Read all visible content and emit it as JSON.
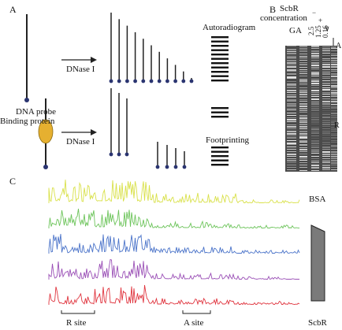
{
  "panels": {
    "a": "A",
    "b": "B",
    "c": "C"
  },
  "panel_a": {
    "step_label_top": "DNase I",
    "step_label_bottom": "DNase I",
    "probe_label": "DNA probe",
    "protein_label": "Binding protein",
    "result_top": "Autoradiogram",
    "result_bottom": "Footprinting"
  },
  "panel_b": {
    "title_line1": "ScbR",
    "title_line2": "concentration",
    "lane_labels": [
      "GA",
      "2.5",
      "1.25",
      "0.16"
    ],
    "symbols": [
      "−",
      "+",
      "∨"
    ],
    "region_a": "A",
    "region_r": "R"
  },
  "panel_c": {
    "trace_labels": [
      "BSA"
    ],
    "gradient_label": "ScbR",
    "site_labels": [
      "R site",
      "A site"
    ],
    "trace_colors": [
      "#d9e14a",
      "#6cc45a",
      "#4a73c9",
      "#9a4fb6",
      "#e0353f"
    ]
  }
}
